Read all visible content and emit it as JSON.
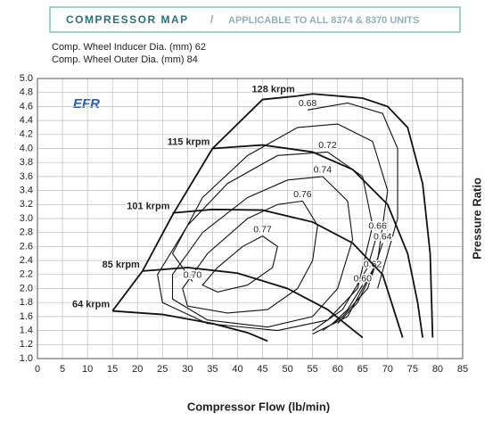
{
  "header": {
    "title": "COMPRESSOR MAP",
    "separator": "/",
    "subtitle": "APPLICABLE TO ALL 8374 & 8370 UNITS"
  },
  "chart_data": {
    "type": "line",
    "annotations": [
      "Comp. Wheel Inducer Dia. (mm) 62",
      "Comp. Wheel Outer Dia. (mm) 84",
      "EFR"
    ],
    "x_label": "Compressor Flow (lb/min)",
    "y_label": "Pressure Ratio",
    "xlim": [
      0,
      85
    ],
    "xticks": [
      0,
      5,
      10,
      15,
      20,
      25,
      30,
      35,
      40,
      45,
      50,
      55,
      60,
      65,
      70,
      75,
      80,
      85
    ],
    "ylim": [
      1,
      5
    ],
    "yticks": [
      {
        "value": 1,
        "label": "1.0"
      },
      1.2,
      1.4,
      1.6,
      1.8,
      {
        "value": 2,
        "label": "2.0"
      },
      2.2,
      2.4,
      2.6,
      2.8,
      {
        "value": 3,
        "label": "3.0"
      },
      3.2,
      3.4,
      3.6,
      3.8,
      {
        "value": 4,
        "label": "4.0"
      },
      4.2,
      4.4,
      4.6,
      4.8,
      {
        "value": 5,
        "label": "5.0"
      }
    ],
    "grid": true,
    "color": "#111111",
    "series": [
      {
        "name": "64 krpm",
        "x": [
          15,
          25,
          35,
          42,
          46
        ],
        "values": [
          1.68,
          1.63,
          1.5,
          1.37,
          1.25
        ]
      },
      {
        "name": "85 krpm",
        "x": [
          21,
          30,
          40,
          50,
          58,
          65
        ],
        "values": [
          2.25,
          2.3,
          2.22,
          2.0,
          1.7,
          1.3
        ]
      },
      {
        "name": "101 krpm",
        "x": [
          27,
          35,
          45,
          55,
          63,
          69,
          73
        ],
        "values": [
          3.08,
          3.13,
          3.12,
          2.95,
          2.65,
          2.2,
          1.3
        ]
      },
      {
        "name": "115 krpm",
        "x": [
          35,
          45,
          55,
          63,
          70,
          74,
          76,
          77
        ],
        "values": [
          4.0,
          4.05,
          3.95,
          3.7,
          3.2,
          2.5,
          1.8,
          1.3
        ]
      },
      {
        "name": "128 krpm",
        "x": [
          52,
          55,
          65,
          70,
          74,
          77,
          78.5,
          79
        ],
        "values": [
          4.75,
          4.78,
          4.72,
          4.6,
          4.3,
          3.5,
          2.5,
          1.3
        ]
      }
    ],
    "surge": {
      "x": [
        15,
        21,
        27,
        35,
        45,
        52
      ],
      "values": [
        1.68,
        2.25,
        3.05,
        4.0,
        4.7,
        4.75
      ]
    },
    "contours": [
      {
        "name": "0.77",
        "x": [
          45,
          48,
          47,
          42,
          36,
          33,
          36,
          41,
          45
        ],
        "values": [
          2.75,
          2.6,
          2.3,
          2.05,
          1.95,
          2.05,
          2.3,
          2.6,
          2.75
        ]
      },
      {
        "name": "0.76",
        "x": [
          53,
          56,
          55,
          52,
          46,
          38,
          30,
          29,
          34,
          42,
          48,
          53
        ],
        "values": [
          3.25,
          2.9,
          2.4,
          2.0,
          1.7,
          1.65,
          1.75,
          2.0,
          2.5,
          3.0,
          3.2,
          3.25
        ]
      },
      {
        "name": "0.74",
        "x": [
          57,
          62,
          63,
          60,
          55,
          46,
          34,
          27,
          27,
          33,
          42,
          50,
          57
        ],
        "values": [
          3.6,
          3.25,
          2.7,
          2.0,
          1.6,
          1.45,
          1.55,
          1.85,
          2.2,
          2.8,
          3.3,
          3.55,
          3.6
        ]
      },
      {
        "name": "0.72",
        "x": [
          58,
          65,
          67,
          64,
          58,
          48,
          34,
          25,
          24,
          30,
          38,
          48,
          58
        ],
        "values": [
          3.95,
          3.6,
          2.9,
          2.0,
          1.55,
          1.4,
          1.5,
          1.8,
          2.2,
          2.9,
          3.5,
          3.9,
          3.95
        ]
      },
      {
        "name": "0.70",
        "x": [
          31,
          27,
          33,
          42,
          52,
          60,
          67,
          70,
          68,
          62,
          55
        ],
        "values": [
          2.1,
          2.5,
          3.3,
          3.9,
          4.3,
          4.35,
          4.1,
          3.4,
          2.4,
          1.6,
          1.35
        ]
      },
      {
        "name": "0.68",
        "x": [
          54,
          62,
          69,
          72,
          72,
          68
        ],
        "values": [
          4.55,
          4.65,
          4.5,
          4.0,
          3.0,
          2.0
        ]
      },
      {
        "name": "0.66",
        "x": [
          68,
          66,
          61,
          55
        ],
        "values": [
          2.8,
          2.3,
          1.7,
          1.4
        ]
      },
      {
        "name": "0.64",
        "x": [
          69,
          66,
          61,
          57
        ],
        "values": [
          2.65,
          2.0,
          1.6,
          1.4
        ]
      },
      {
        "name": "0.62",
        "x": [
          67,
          64,
          60
        ],
        "values": [
          2.25,
          1.8,
          1.5
        ]
      },
      {
        "name": "0.60",
        "x": [
          65,
          62,
          59
        ],
        "values": [
          2.05,
          1.7,
          1.5
        ]
      }
    ]
  }
}
